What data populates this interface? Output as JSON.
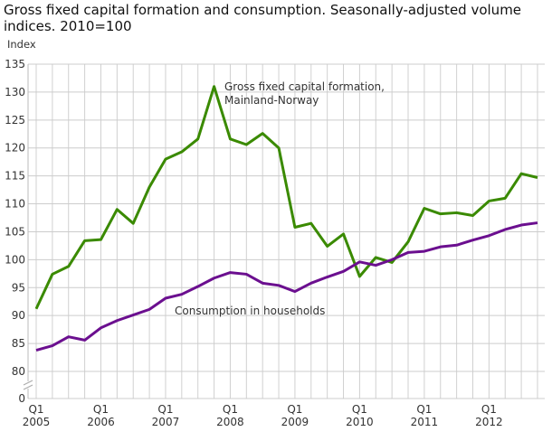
{
  "chart_data": {
    "type": "line",
    "title": "Gross fixed capital formation and consumption. Seasonally-adjusted volume indices. 2010=100",
    "ylabel": "Index",
    "xlabel": "",
    "ylim": [
      80,
      135
    ],
    "y_axis_break": true,
    "yticks": [
      0,
      80,
      85,
      90,
      95,
      100,
      105,
      110,
      115,
      120,
      125,
      130,
      135
    ],
    "xtick_labels": [
      [
        "Q1",
        "2005"
      ],
      [
        "Q1",
        "2006"
      ],
      [
        "Q1",
        "2007"
      ],
      [
        "Q1",
        "2008"
      ],
      [
        "Q1",
        "2009"
      ],
      [
        "Q1",
        "2010"
      ],
      [
        "Q1",
        "2011"
      ],
      [
        "Q1",
        "2012"
      ]
    ],
    "x_start": "2005Q1",
    "x_end": "2012Q4",
    "grid": true,
    "series": [
      {
        "name": "Gross fixed capital formation, Mainland-Norway",
        "name_lines": [
          "Gross fixed capital formation,",
          "Mainland-Norway"
        ],
        "color": "#3a8a00",
        "values": [
          91.2,
          97.4,
          98.8,
          103.4,
          103.6,
          109.0,
          106.5,
          113.0,
          118.0,
          119.3,
          121.6,
          131.0,
          121.6,
          120.6,
          122.6,
          120.0,
          105.8,
          106.5,
          102.4,
          104.6,
          97.0,
          100.4,
          99.5,
          103.2,
          109.2,
          108.2,
          108.4,
          107.9,
          110.5,
          111.0,
          115.4,
          114.7
        ]
      },
      {
        "name": "Consumption in households",
        "name_lines": [
          "Consumption in households"
        ],
        "color": "#6b0f8f",
        "values": [
          83.8,
          84.6,
          86.2,
          85.6,
          87.8,
          89.1,
          90.1,
          91.1,
          93.1,
          93.8,
          95.2,
          96.7,
          97.7,
          97.4,
          95.8,
          95.4,
          94.3,
          95.8,
          96.9,
          97.9,
          99.6,
          99.0,
          100.0,
          101.3,
          101.5,
          102.3,
          102.6,
          103.5,
          104.3,
          105.4,
          106.2,
          106.6
        ]
      }
    ]
  }
}
